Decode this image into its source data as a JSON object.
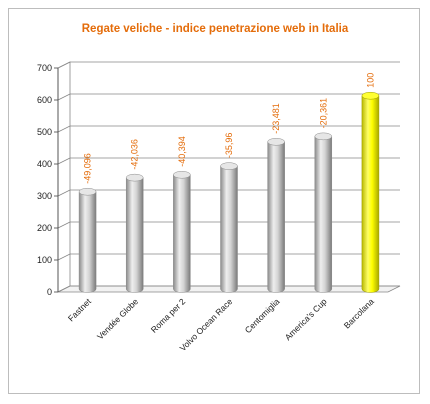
{
  "chart_data": {
    "type": "bar",
    "title": "Regate veliche - indice penetrazione web in Italia",
    "categories": [
      "Fastnet",
      "Vendée Globe",
      "Roma per 2",
      "Volvo Ocean Race",
      "Centomiglia",
      "America's Cup",
      "Barcolana"
    ],
    "values": [
      304,
      348,
      357,
      384,
      460,
      477,
      604
    ],
    "data_labels": [
      "-49,096",
      "-42,036",
      "-40,394",
      "-35,96",
      "-23,481",
      "-20,361",
      "100"
    ],
    "ylim": [
      0,
      700
    ],
    "yticks": [
      "0",
      "100",
      "200",
      "300",
      "400",
      "500",
      "600",
      "700"
    ],
    "xlabel": "",
    "ylabel": "",
    "grid": true,
    "colors": {
      "bar": "#c8c8c8",
      "highlight_bar": "#ffff00",
      "title": "#e46c0a",
      "data_label": "#e46c0a"
    }
  }
}
